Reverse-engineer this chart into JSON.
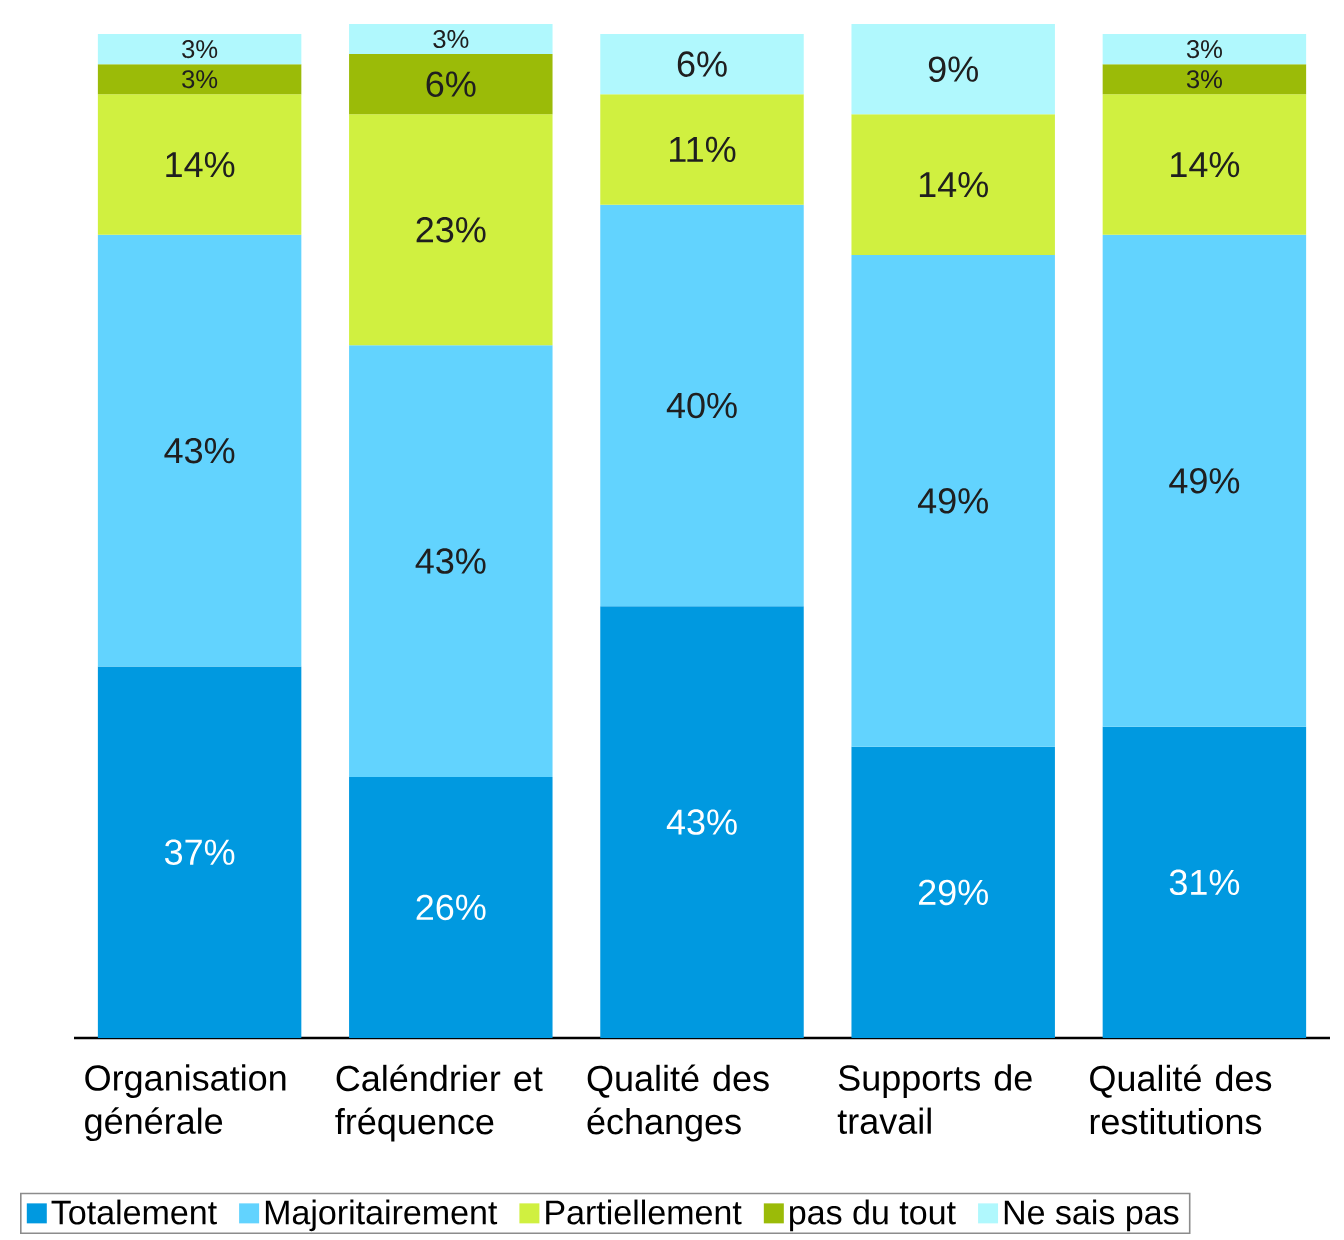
{
  "chart_data": {
    "type": "bar",
    "stacked": true,
    "categories": [
      "Organisation générale",
      "Caléndrier et fréquence",
      "Qualité des échanges",
      "Supports de travail",
      "Qualité des restitutions"
    ],
    "series": [
      {
        "name": "Totalement",
        "color": "#0099e0",
        "values": [
          37,
          26,
          43,
          29,
          31
        ],
        "value_labels": [
          "37%",
          "26%",
          "43%",
          "29%",
          "31%"
        ]
      },
      {
        "name": "Majoritairement",
        "color": "#62d3fe",
        "values": [
          43,
          43,
          40,
          49,
          49
        ],
        "value_labels": [
          "43%",
          "43%",
          "40%",
          "49%",
          "49%"
        ]
      },
      {
        "name": "Partiellement",
        "color": "#d0f040",
        "values": [
          14,
          23,
          11,
          14,
          14
        ],
        "value_labels": [
          "14%",
          "23%",
          "11%",
          "14%",
          "14%"
        ]
      },
      {
        "name": "pas du tout",
        "color": "#9bbb08",
        "values": [
          3,
          6,
          null,
          null,
          3
        ],
        "value_labels": [
          "3%",
          "6%",
          null,
          null,
          "3%"
        ]
      },
      {
        "name": "Ne sais pas",
        "color": "#b0f8fd",
        "values": [
          3,
          3,
          6,
          9,
          3
        ],
        "value_labels": [
          "3%",
          "3%",
          "6%",
          "9%",
          "3%"
        ]
      }
    ],
    "legend": "bottom",
    "tick_labels": "x"
  }
}
